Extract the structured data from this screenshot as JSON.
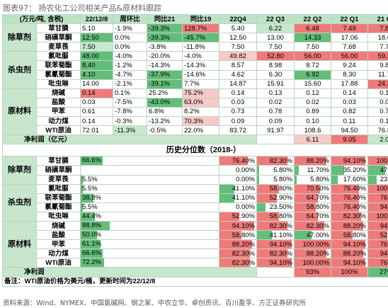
{
  "caption": "图表97：  扬农化工公司相关产品&原材料跟踪",
  "header": [
    "(万元/吨, 含税)",
    "",
    "22/12/8",
    "周环比",
    "同比21",
    "同比19",
    "22Q4",
    "22 Q3",
    "22 Q2",
    "22 Q1",
    "21 Q4"
  ],
  "colors": {
    "red": "#f07a7a",
    "lightred": "#f9c9c9",
    "green": "#63be7b",
    "lightgreen": "#c6e8cc",
    "white": "#ffffff"
  },
  "groups1": [
    {
      "group": "除草剂",
      "rows": [
        {
          "name": "草甘膦",
          "v": [
            "5.10",
            "-1.9%",
            "-39.3%",
            "128.7%",
            "5.40",
            "6.22",
            "6.48",
            "7.49",
            "7.89"
          ],
          "c": [
            "w",
            "w",
            "g",
            "r",
            "w",
            "lg",
            "r",
            "r",
            "r"
          ]
        },
        {
          "name": "硝磺草酮",
          "v": [
            "12.50",
            "0.0%",
            "-39.3%",
            "-45.7%",
            "12.50",
            "13.00",
            "14.33",
            "17.06",
            "18.09"
          ],
          "c": [
            "g",
            "w",
            "g",
            "g",
            "w",
            "w",
            "g",
            "w",
            "w"
          ]
        },
        {
          "name": "麦草畏",
          "v": [
            "7.50",
            "0.0%",
            "-3.8%",
            "-11.8%",
            "7.50",
            "7.50",
            "7.50",
            "7.68",
            "7.73"
          ],
          "c": [
            "lg",
            "w",
            "w",
            "w",
            "w",
            "w",
            "w",
            "w",
            "w"
          ]
        }
      ]
    },
    {
      "group": "杀虫剂",
      "rows": [
        {
          "name": "氯吡脲",
          "v": [
            "48.00",
            "-4.0%",
            "-20.0%",
            "-4.0%",
            "49.82",
            "52.80",
            "56.00",
            "56.00",
            "59.20"
          ],
          "c": [
            "g",
            "w",
            "w",
            "w",
            "lr",
            "r",
            "r",
            "r",
            "r"
          ]
        },
        {
          "name": "联苯菊酯",
          "v": [
            "8.40",
            "-1.2%",
            "-14.3%",
            "-14.3%",
            "8.57",
            "8.98",
            "8.72",
            "9.24",
            "9.86"
          ],
          "c": [
            "g",
            "w",
            "w",
            "w",
            "w",
            "w",
            "w",
            "w",
            "w"
          ]
        },
        {
          "name": "氯氰菊酯",
          "v": [
            "4.10",
            "-4.7%",
            "-37.9%",
            "-14.6%",
            "4.62",
            "6.30",
            "6.92",
            "8.30",
            "11.73"
          ],
          "c": [
            "g",
            "w",
            "g",
            "w",
            "w",
            "w",
            "g",
            "w",
            "w"
          ]
        },
        {
          "name": "吡虫啉",
          "v": [
            "14.00",
            "-2.1%",
            "-39.1%",
            "7.7%",
            "14.87",
            "15.91",
            "15.60",
            "17.88",
            "24.39"
          ],
          "c": [
            "w",
            "w",
            "g",
            "w",
            "w",
            "w",
            "w",
            "w",
            "r"
          ]
        }
      ]
    },
    {
      "group": "原材料",
      "rows": [
        {
          "name": "烧碱",
          "v": [
            "0.14",
            "0.1%",
            "25.2%",
            "75.2%",
            "0.14",
            "0.13",
            "0.12",
            "0.14",
            "0.14"
          ],
          "c": [
            "r",
            "w",
            "w",
            "lr",
            "w",
            "w",
            "w",
            "w",
            "w"
          ]
        },
        {
          "name": "盐酸",
          "v": [
            "0.03",
            "-7.5%",
            "-43.0%",
            "63.0%",
            "0.03",
            "0.02",
            "0.02",
            "0.03",
            "0.03"
          ],
          "c": [
            "w",
            "w",
            "g",
            "lr",
            "w",
            "w",
            "w",
            "w",
            "w"
          ]
        },
        {
          "name": "甲苯",
          "v": [
            "0.61",
            "-7.8%",
            "6.8%",
            "8.2%",
            "0.73",
            "0.78",
            "0.89",
            "0.82",
            "0.70"
          ],
          "c": [
            "w",
            "w",
            "w",
            "w",
            "w",
            "w",
            "w",
            "w",
            "w"
          ]
        },
        {
          "name": "动力煤",
          "v": [
            "0.14",
            "-0.3%",
            "-13.2%",
            "70.3%",
            "0.09",
            "0.09",
            "0.10",
            "0.11",
            "0.13"
          ],
          "c": [
            "w",
            "w",
            "w",
            "lr",
            "w",
            "w",
            "w",
            "w",
            "w"
          ]
        },
        {
          "name": "WTI原油",
          "v": [
            "72.01",
            "-11.3%",
            "-0.5%",
            "22.0%",
            "83.72",
            "91.97",
            "108.6",
            "94.50",
            "76.85"
          ],
          "c": [
            "w",
            "lg",
            "w",
            "w",
            "w",
            "w",
            "w",
            "w",
            "w"
          ]
        }
      ]
    }
  ],
  "profit1": {
    "label": "净利润（亿元）",
    "q3": "6.11",
    "q2": "9.05",
    "q1": "2.06"
  },
  "section_title": "历史分位数（2018-）",
  "groups2": [
    {
      "group": "除草剂",
      "rows": [
        {
          "name": "草甘膦",
          "v": [
            "66.6%",
            "76.40%",
            "82.30%",
            "88.20%",
            "94.10%",
            "100.00%"
          ]
        },
        {
          "name": "硝磺草酮",
          "v": [
            "",
            "0.00%",
            "5.80%",
            "11.70%",
            "35.20%",
            "47.00%"
          ]
        },
        {
          "name": "麦草畏",
          "v": [
            "5.5%",
            "0.00%",
            "5.80%",
            "5.80%",
            "17.60%",
            "23.50%"
          ]
        }
      ]
    },
    {
      "group": "杀虫剂",
      "rows": [
        {
          "name": "氯吡脲",
          "v": [
            "5.5%",
            "41.10%",
            "58.80%",
            "70.50%",
            "76.40%",
            "100.00%"
          ]
        },
        {
          "name": "联苯菊酯",
          "v": [
            "38.8%",
            "41.10%",
            "52.90%",
            "64.70%",
            "76.40%",
            "76.40%"
          ]
        },
        {
          "name": "氯氰菊酯",
          "v": [
            "5.5%",
            "0.00%",
            "23.50%",
            "58.80%",
            "76.40%",
            "94.10%"
          ]
        },
        {
          "name": "吡虫啉",
          "v": [
            "44.4%",
            "52.90%",
            "58.80%",
            "64.70%",
            "82.30%",
            "100.00%"
          ]
        }
      ]
    },
    {
      "group": "原材料",
      "rows": [
        {
          "name": "烧碱",
          "v": [
            "88.8%",
            "94.10%",
            "82.30%",
            "82.30%",
            "88.20%",
            "94.10%"
          ]
        },
        {
          "name": "盐酸",
          "v": [
            "50.0%",
            "58.80%",
            "41.10%",
            "47.00%",
            "58.80%",
            "52.90%"
          ]
        },
        {
          "name": "甲苯",
          "v": [
            "61.1%",
            "88.20%",
            "94.10%",
            "100.00%",
            "94.10%",
            "76.40%"
          ]
        },
        {
          "name": "动力煤",
          "v": [
            "66.6%",
            "82.30%",
            "82.30%",
            "88.20%",
            "88.20%",
            "94.10%"
          ]
        },
        {
          "name": "WTI原油",
          "v": [
            "72.2%",
            "82.30%",
            "94.10%",
            "100.00%",
            "94.10%",
            "76.40%"
          ]
        }
      ]
    }
  ],
  "pct_fill": {
    "c0": [
      66.6,
      0,
      5.5,
      5.5,
      38.8,
      5.5,
      44.4,
      88.8,
      50.0,
      61.1,
      66.6,
      72.2
    ],
    "c1": [
      76.4,
      0,
      0,
      41.1,
      41.1,
      0,
      52.9,
      94.1,
      58.8,
      88.2,
      82.3,
      82.3
    ],
    "c2": [
      82.3,
      5.8,
      5.8,
      58.8,
      52.9,
      23.5,
      58.8,
      82.3,
      41.1,
      94.1,
      82.3,
      94.1
    ],
    "c3": [
      88.2,
      11.7,
      5.8,
      70.5,
      64.7,
      58.8,
      64.7,
      82.3,
      47.0,
      100,
      88.2,
      100
    ],
    "c4": [
      94.1,
      35.2,
      17.6,
      76.4,
      76.4,
      76.4,
      82.3,
      88.2,
      58.8,
      94.1,
      88.2,
      94.1
    ],
    "c5": [
      100,
      47.0,
      23.5,
      100,
      76.4,
      94.1,
      100,
      94.1,
      52.9,
      76.4,
      94.1,
      76.4
    ]
  },
  "profit2": {
    "label": "净利润",
    "q3": "93%",
    "q2": "100%",
    "q1": "27%"
  },
  "footnote": "备注：WTI原油价格为美元/桶，更新时间为22/12/8",
  "source": "资料来源：Wind、NYMEX、中国氯碱网、钢之家、中农立华、卓创资讯、百川盈孚、方正证券研究所"
}
